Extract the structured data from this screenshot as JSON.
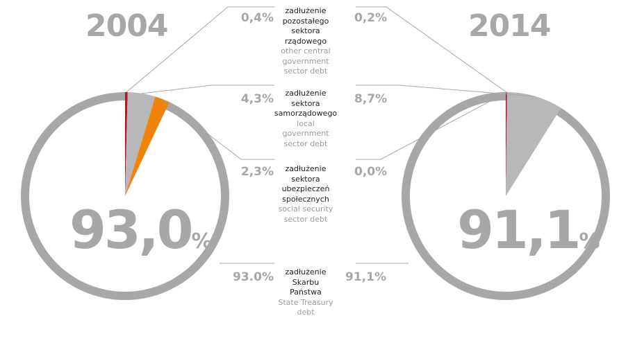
{
  "chart_data": [
    {
      "type": "pie",
      "title": "2004",
      "center_label": "93,0",
      "center_unit": "%",
      "categories": [
        "zadłużenie Skarbu Państwa",
        "zadłużenie pozostałego sektora rządowego",
        "zadłużenie sektora samorządowego",
        "zadłużenie sektora ubezpieczeń społecznych"
      ],
      "values": [
        93.0,
        0.4,
        4.3,
        2.3
      ],
      "value_labels": [
        "93.0%",
        "0,4%",
        "4,3%",
        "2,3%"
      ]
    },
    {
      "type": "pie",
      "title": "2014",
      "center_label": "91,1",
      "center_unit": "%",
      "categories": [
        "zadłużenie Skarbu Państwa",
        "zadłużenie pozostałego sektora rządowego",
        "zadłużenie sektora samorządowego",
        "zadłużenie sektora ubezpieczeń społecznych"
      ],
      "values": [
        91.1,
        0.2,
        8.7,
        0.0
      ],
      "value_labels": [
        "91,1%",
        "0,2%",
        "8,7%",
        "0,0%"
      ]
    }
  ],
  "legend": [
    {
      "pl": [
        "zadłużenie",
        "pozostałego",
        "sektora",
        "rządowego"
      ],
      "en": [
        "other central",
        "government",
        "sector debt"
      ],
      "color": "#b0182a"
    },
    {
      "pl": [
        "zadłużenie",
        "sektora",
        "samorządowego"
      ],
      "en": [
        "local",
        "government",
        "sector debt"
      ],
      "color": "#b8b8ba"
    },
    {
      "pl": [
        "zadłużenie",
        "sektora",
        "ubezpieczeń",
        "społecznych"
      ],
      "en": [
        "social security",
        "sector debt"
      ],
      "color": "#f0830a"
    },
    {
      "pl": [
        "zadłużenie",
        "Skarbu",
        "Państwa"
      ],
      "en": [
        "State Treasury",
        "debt"
      ],
      "color": "#a7a7a9"
    }
  ],
  "colors": {
    "treasury": "#a7a7a9",
    "other_central": "#b0182a",
    "local": "#b8b8ba",
    "social": "#f0830a",
    "connector": "#a7a7a9"
  }
}
